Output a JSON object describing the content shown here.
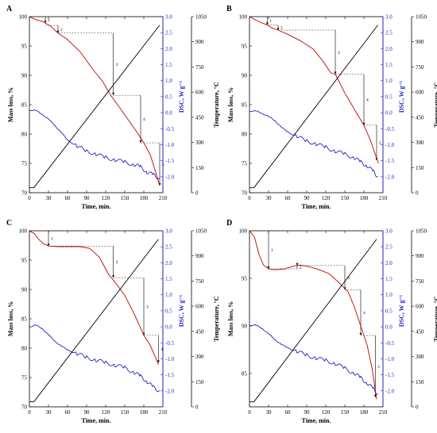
{
  "chart_data": [
    {
      "type": "line",
      "panel": "A",
      "xlabel": "Time, min.",
      "ylabel_left": "Mass loss, %",
      "ylabel_dsc": "DSC, W g⁻¹",
      "ylabel_temp": "Temperature, °C",
      "xlim": [
        0,
        210
      ],
      "x_ticks": [
        0,
        30,
        60,
        90,
        120,
        150,
        180,
        210
      ],
      "ylim_mass": [
        70,
        100
      ],
      "mass_ticks": [
        70,
        75,
        80,
        85,
        90,
        95,
        100
      ],
      "ylim_dsc": [
        -2.5,
        3.0
      ],
      "dsc_ticks": [
        -2.0,
        -1.5,
        -1.0,
        -0.5,
        0.0,
        0.5,
        1.0,
        1.5,
        2.0,
        2.5,
        3.0
      ],
      "ylim_temp": [
        0,
        1050
      ],
      "temp_ticks": [
        0,
        150,
        300,
        450,
        600,
        750,
        900,
        1050
      ],
      "series": [
        {
          "color": "#c00000",
          "axis": "mass",
          "x": [
            0,
            10,
            20,
            25,
            32,
            45,
            60,
            80,
            100,
            115,
            128,
            140,
            155,
            170,
            180,
            190,
            200,
            205
          ],
          "y": [
            100,
            99.5,
            99.2,
            98.9,
            98.5,
            97.2,
            96.1,
            94.0,
            91.0,
            89.0,
            86.6,
            84.8,
            82.5,
            80.2,
            78.5,
            76.5,
            73.0,
            71.2
          ]
        },
        {
          "color": "#1f1fcc",
          "axis": "dsc",
          "x": [
            0,
            10,
            20,
            30,
            40,
            50,
            60,
            75,
            90,
            105,
            120,
            135,
            150,
            165,
            175,
            185,
            195,
            205
          ],
          "y": [
            0.08,
            0.07,
            -0.05,
            -0.2,
            -0.4,
            -0.62,
            -0.85,
            -1.05,
            -1.2,
            -1.3,
            -1.4,
            -1.47,
            -1.55,
            -1.62,
            -1.7,
            -1.85,
            -1.95,
            -2.05
          ]
        },
        {
          "color": "#000000",
          "axis": "temp",
          "x": [
            0,
            7,
            205
          ],
          "y": [
            30,
            30,
            1000
          ]
        }
      ],
      "steps": [
        {
          "label": "1",
          "x": 25,
          "y_top": 100,
          "y_bottom": 98.9,
          "x_end": 25
        },
        {
          "label": "2",
          "x": 45,
          "y_top": 98.5,
          "y_bottom": 97.2,
          "x_end": 132
        },
        {
          "label": "3",
          "x": 132,
          "y_top": 97.2,
          "y_bottom": 86.6,
          "x_end": 175
        },
        {
          "label": "4",
          "x": 175,
          "y_top": 86.6,
          "y_bottom": 78.5,
          "x_end": 205
        },
        {
          "label": "5",
          "x": 205,
          "y_top": 78.5,
          "y_bottom": 71.2,
          "x_end": 205
        }
      ]
    },
    {
      "type": "line",
      "panel": "B",
      "xlabel": "Time, min.",
      "ylabel_left": "Mass loss, %",
      "ylabel_dsc": "DSC, W g⁻¹",
      "ylabel_temp": "Temperature, °C",
      "xlim": [
        0,
        210
      ],
      "x_ticks": [
        0,
        30,
        60,
        90,
        120,
        150,
        180,
        210
      ],
      "ylim_mass": [
        70,
        100
      ],
      "mass_ticks": [
        70,
        75,
        80,
        85,
        90,
        95,
        100
      ],
      "ylim_dsc": [
        -2.5,
        3.0
      ],
      "dsc_ticks": [
        -2.0,
        -1.5,
        -1.0,
        -0.5,
        0.0,
        0.5,
        1.0,
        1.5,
        2.0,
        2.5,
        3.0
      ],
      "ylim_temp": [
        0,
        1050
      ],
      "temp_ticks": [
        0,
        150,
        300,
        450,
        600,
        750,
        900,
        1050
      ],
      "series": [
        {
          "color": "#c00000",
          "axis": "mass",
          "x": [
            0,
            10,
            20,
            28,
            35,
            45,
            60,
            80,
            100,
            115,
            128,
            135,
            150,
            165,
            180,
            190,
            198,
            203
          ],
          "y": [
            100,
            99.4,
            98.9,
            98.6,
            98.1,
            97.7,
            97.0,
            95.9,
            94.5,
            92.5,
            90.4,
            90.2,
            87.0,
            84.2,
            81.5,
            79.0,
            76.5,
            75.0
          ]
        },
        {
          "color": "#1f1fcc",
          "axis": "dsc",
          "x": [
            0,
            10,
            20,
            30,
            40,
            50,
            60,
            75,
            90,
            105,
            120,
            135,
            150,
            165,
            175,
            185,
            195,
            202
          ],
          "y": [
            0.05,
            0.05,
            -0.02,
            -0.12,
            -0.25,
            -0.45,
            -0.6,
            -0.75,
            -0.88,
            -0.98,
            -1.08,
            -1.2,
            -1.3,
            -1.4,
            -1.55,
            -1.65,
            -1.85,
            -2.0
          ]
        },
        {
          "color": "#000000",
          "axis": "temp",
          "x": [
            0,
            7,
            202
          ],
          "y": [
            30,
            30,
            1000
          ]
        }
      ],
      "steps": [
        {
          "label": "1",
          "x": 28,
          "y_top": 100,
          "y_bottom": 98.6,
          "x_end": 28
        },
        {
          "label": "2",
          "x": 45,
          "y_top": 98.6,
          "y_bottom": 97.7,
          "x_end": 135
        },
        {
          "label": "3",
          "x": 135,
          "y_top": 97.7,
          "y_bottom": 90.2,
          "x_end": 180
        },
        {
          "label": "4",
          "x": 180,
          "y_top": 90.2,
          "y_bottom": 81.5,
          "x_end": 200
        },
        {
          "label": "5",
          "x": 200,
          "y_top": 81.5,
          "y_bottom": 75.5,
          "x_end": 200
        }
      ]
    },
    {
      "type": "line",
      "panel": "C",
      "xlabel": "Time, min.",
      "ylabel_left": "Mass loss, %",
      "ylabel_dsc": "DSC, W g⁻¹",
      "ylabel_temp": "Temperature, °C",
      "xlim": [
        0,
        210
      ],
      "x_ticks": [
        0,
        30,
        60,
        90,
        120,
        150,
        180,
        210
      ],
      "ylim_mass": [
        70,
        100
      ],
      "mass_ticks": [
        70,
        75,
        80,
        85,
        90,
        95,
        100
      ],
      "ylim_dsc": [
        -2.5,
        3.0
      ],
      "dsc_ticks": [
        -2.0,
        -1.5,
        -1.0,
        -0.5,
        0.0,
        0.5,
        1.0,
        1.5,
        2.0,
        2.5,
        3.0
      ],
      "ylim_temp": [
        0,
        1050
      ],
      "temp_ticks": [
        0,
        150,
        300,
        450,
        600,
        750,
        900,
        1050
      ],
      "series": [
        {
          "color": "#c00000",
          "axis": "mass",
          "x": [
            0,
            8,
            15,
            22,
            30,
            45,
            60,
            80,
            95,
            110,
            125,
            135,
            150,
            165,
            180,
            190,
            198,
            203
          ],
          "y": [
            100,
            99.5,
            98.5,
            97.8,
            97.4,
            97.3,
            97.3,
            97.3,
            97.0,
            95.5,
            92.5,
            91.2,
            89.0,
            85.8,
            82.2,
            80.5,
            78.5,
            77.2
          ]
        },
        {
          "color": "#1f1fcc",
          "axis": "dsc",
          "x": [
            0,
            10,
            20,
            30,
            40,
            50,
            60,
            75,
            90,
            105,
            120,
            135,
            150,
            165,
            175,
            185,
            195,
            205
          ],
          "y": [
            0.0,
            0.05,
            -0.05,
            -0.25,
            -0.45,
            -0.6,
            -0.72,
            -0.85,
            -0.95,
            -1.05,
            -1.12,
            -1.2,
            -1.28,
            -1.42,
            -1.55,
            -1.7,
            -1.9,
            -2.0
          ]
        },
        {
          "color": "#000000",
          "axis": "temp",
          "x": [
            0,
            7,
            203
          ],
          "y": [
            30,
            30,
            1000
          ]
        }
      ],
      "steps": [
        {
          "label": "1",
          "x": 30,
          "y_top": 100,
          "y_bottom": 97.4,
          "x_end": 132
        },
        {
          "label": "2",
          "x": 132,
          "y_top": 97.4,
          "y_bottom": 92.0,
          "x_end": 180
        },
        {
          "label": "3",
          "x": 180,
          "y_top": 92.0,
          "y_bottom": 82.2,
          "x_end": 203
        },
        {
          "label": "4",
          "x": 203,
          "y_top": 82.2,
          "y_bottom": 77.5,
          "x_end": 203
        }
      ]
    },
    {
      "type": "line",
      "panel": "D",
      "xlabel": "Time, min.",
      "ylabel_left": "Mass loss, %",
      "ylabel_dsc": "DSC, W g⁻¹",
      "ylabel_temp": "Temperature, °C",
      "xlim": [
        0,
        210
      ],
      "x_ticks": [
        0,
        30,
        60,
        90,
        120,
        150,
        180,
        210
      ],
      "ylim_mass": [
        81.5,
        100
      ],
      "mass_ticks": [
        85,
        90,
        95,
        100
      ],
      "ylim_dsc": [
        -2.5,
        3.0
      ],
      "dsc_ticks": [
        -2.0,
        -1.5,
        -1.0,
        -0.5,
        0.0,
        0.5,
        1.0,
        1.5,
        2.0,
        2.5,
        3.0
      ],
      "ylim_temp": [
        0,
        1050
      ],
      "temp_ticks": [
        0,
        150,
        300,
        450,
        600,
        750,
        900,
        1050
      ],
      "series": [
        {
          "color": "#c00000",
          "axis": "mass",
          "x": [
            0,
            8,
            15,
            22,
            30,
            40,
            55,
            70,
            80,
            95,
            110,
            125,
            140,
            155,
            165,
            175,
            185,
            193,
            200
          ],
          "y": [
            100,
            99.3,
            97.5,
            96.4,
            96.0,
            95.9,
            96.0,
            96.3,
            96.4,
            96.2,
            95.9,
            95.5,
            94.6,
            93.6,
            92.0,
            90.0,
            88.0,
            85.5,
            82.3
          ]
        },
        {
          "color": "#1f1fcc",
          "axis": "dsc",
          "x": [
            0,
            10,
            20,
            30,
            40,
            50,
            60,
            75,
            90,
            105,
            120,
            135,
            150,
            165,
            175,
            185,
            195,
            202
          ],
          "y": [
            0.05,
            0.05,
            -0.05,
            -0.22,
            -0.4,
            -0.55,
            -0.65,
            -0.78,
            -0.88,
            -0.98,
            -1.05,
            -1.15,
            -1.3,
            -1.45,
            -1.6,
            -1.75,
            -1.95,
            -2.1
          ]
        },
        {
          "color": "#000000",
          "axis": "temp",
          "x": [
            0,
            7,
            200
          ],
          "y": [
            30,
            30,
            1000
          ]
        }
      ],
      "steps": [
        {
          "label": "1",
          "x": 30,
          "y_top": 100,
          "y_bottom": 96.0,
          "x_end": 55
        },
        {
          "label": "2",
          "x": 75,
          "y_top": 96.0,
          "y_bottom": 96.35,
          "x_end": 150
        },
        {
          "label": "3",
          "x": 150,
          "y_top": 96.35,
          "y_bottom": 93.8,
          "x_end": 175
        },
        {
          "label": "4",
          "x": 175,
          "y_top": 93.8,
          "y_bottom": 89.0,
          "x_end": 198
        },
        {
          "label": "5",
          "x": 198,
          "y_top": 89.0,
          "y_bottom": 82.5,
          "x_end": 198
        }
      ]
    }
  ]
}
